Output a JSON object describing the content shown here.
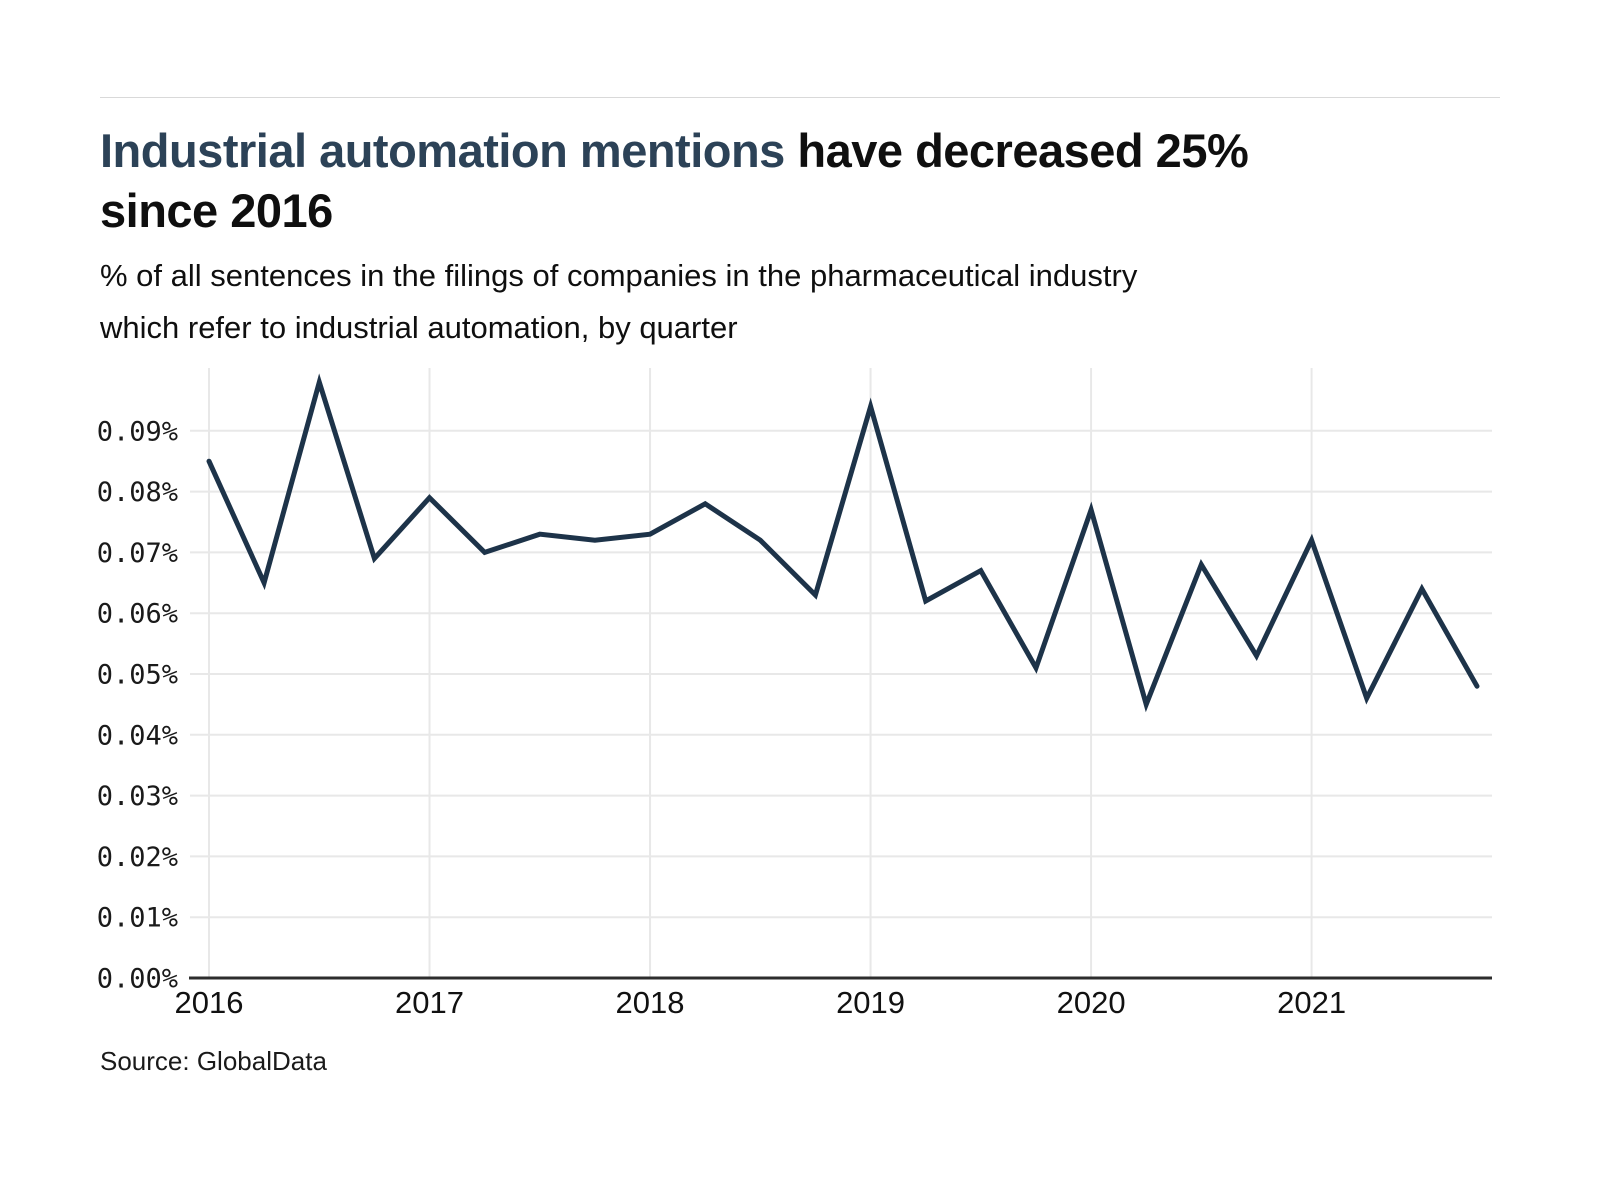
{
  "page": {
    "title": {
      "highlight": "Industrial automation mentions",
      "rest_line1": " have decreased 25%",
      "line2": "since 2016"
    },
    "subtitle_line1": "% of all sentences in the filings of companies in the pharmaceutical industry",
    "subtitle_line2": "which refer to industrial automation, by quarter",
    "source": "Source: GlobalData"
  },
  "colors": {
    "title_highlight": "#2c4257",
    "text": "#111111",
    "tick_text": "#1a1a1a",
    "line": "#1d3349",
    "gridline": "#e8e8e8",
    "axis": "#2d2d2d",
    "divider": "#d9d9d9",
    "background": "#ffffff"
  },
  "chart_data": {
    "type": "line",
    "title": "Industrial automation mentions have decreased 25% since 2016",
    "subtitle": "% of all sentences in the filings of companies in the pharmaceutical industry which refer to industrial automation, by quarter",
    "unit": "%",
    "grid": true,
    "legend": false,
    "ylim": [
      0,
      0.1
    ],
    "x": [
      "2016 Q1",
      "2016 Q2",
      "2016 Q3",
      "2016 Q4",
      "2017 Q1",
      "2017 Q2",
      "2017 Q3",
      "2017 Q4",
      "2018 Q1",
      "2018 Q2",
      "2018 Q3",
      "2018 Q4",
      "2019 Q1",
      "2019 Q2",
      "2019 Q3",
      "2019 Q4",
      "2020 Q1",
      "2020 Q2",
      "2020 Q3",
      "2020 Q4",
      "2021 Q1",
      "2021 Q2",
      "2021 Q3",
      "2021 Q4"
    ],
    "values": [
      0.085,
      0.065,
      0.098,
      0.069,
      0.079,
      0.07,
      0.073,
      0.072,
      0.073,
      0.078,
      0.072,
      0.063,
      0.094,
      0.062,
      0.067,
      0.051,
      0.077,
      0.045,
      0.068,
      0.053,
      0.072,
      0.046,
      0.064,
      0.048
    ],
    "y_ticks": [
      {
        "label": "0.00%",
        "value": 0.0
      },
      {
        "label": "0.01%",
        "value": 0.01
      },
      {
        "label": "0.02%",
        "value": 0.02
      },
      {
        "label": "0.03%",
        "value": 0.03
      },
      {
        "label": "0.04%",
        "value": 0.04
      },
      {
        "label": "0.05%",
        "value": 0.05
      },
      {
        "label": "0.06%",
        "value": 0.06
      },
      {
        "label": "0.07%",
        "value": 0.07
      },
      {
        "label": "0.08%",
        "value": 0.08
      },
      {
        "label": "0.09%",
        "value": 0.09
      }
    ],
    "x_ticks": [
      {
        "label": "2016",
        "quarter_index": 0
      },
      {
        "label": "2017",
        "quarter_index": 4
      },
      {
        "label": "2018",
        "quarter_index": 8
      },
      {
        "label": "2019",
        "quarter_index": 12
      },
      {
        "label": "2020",
        "quarter_index": 16
      },
      {
        "label": "2021",
        "quarter_index": 20
      }
    ]
  }
}
